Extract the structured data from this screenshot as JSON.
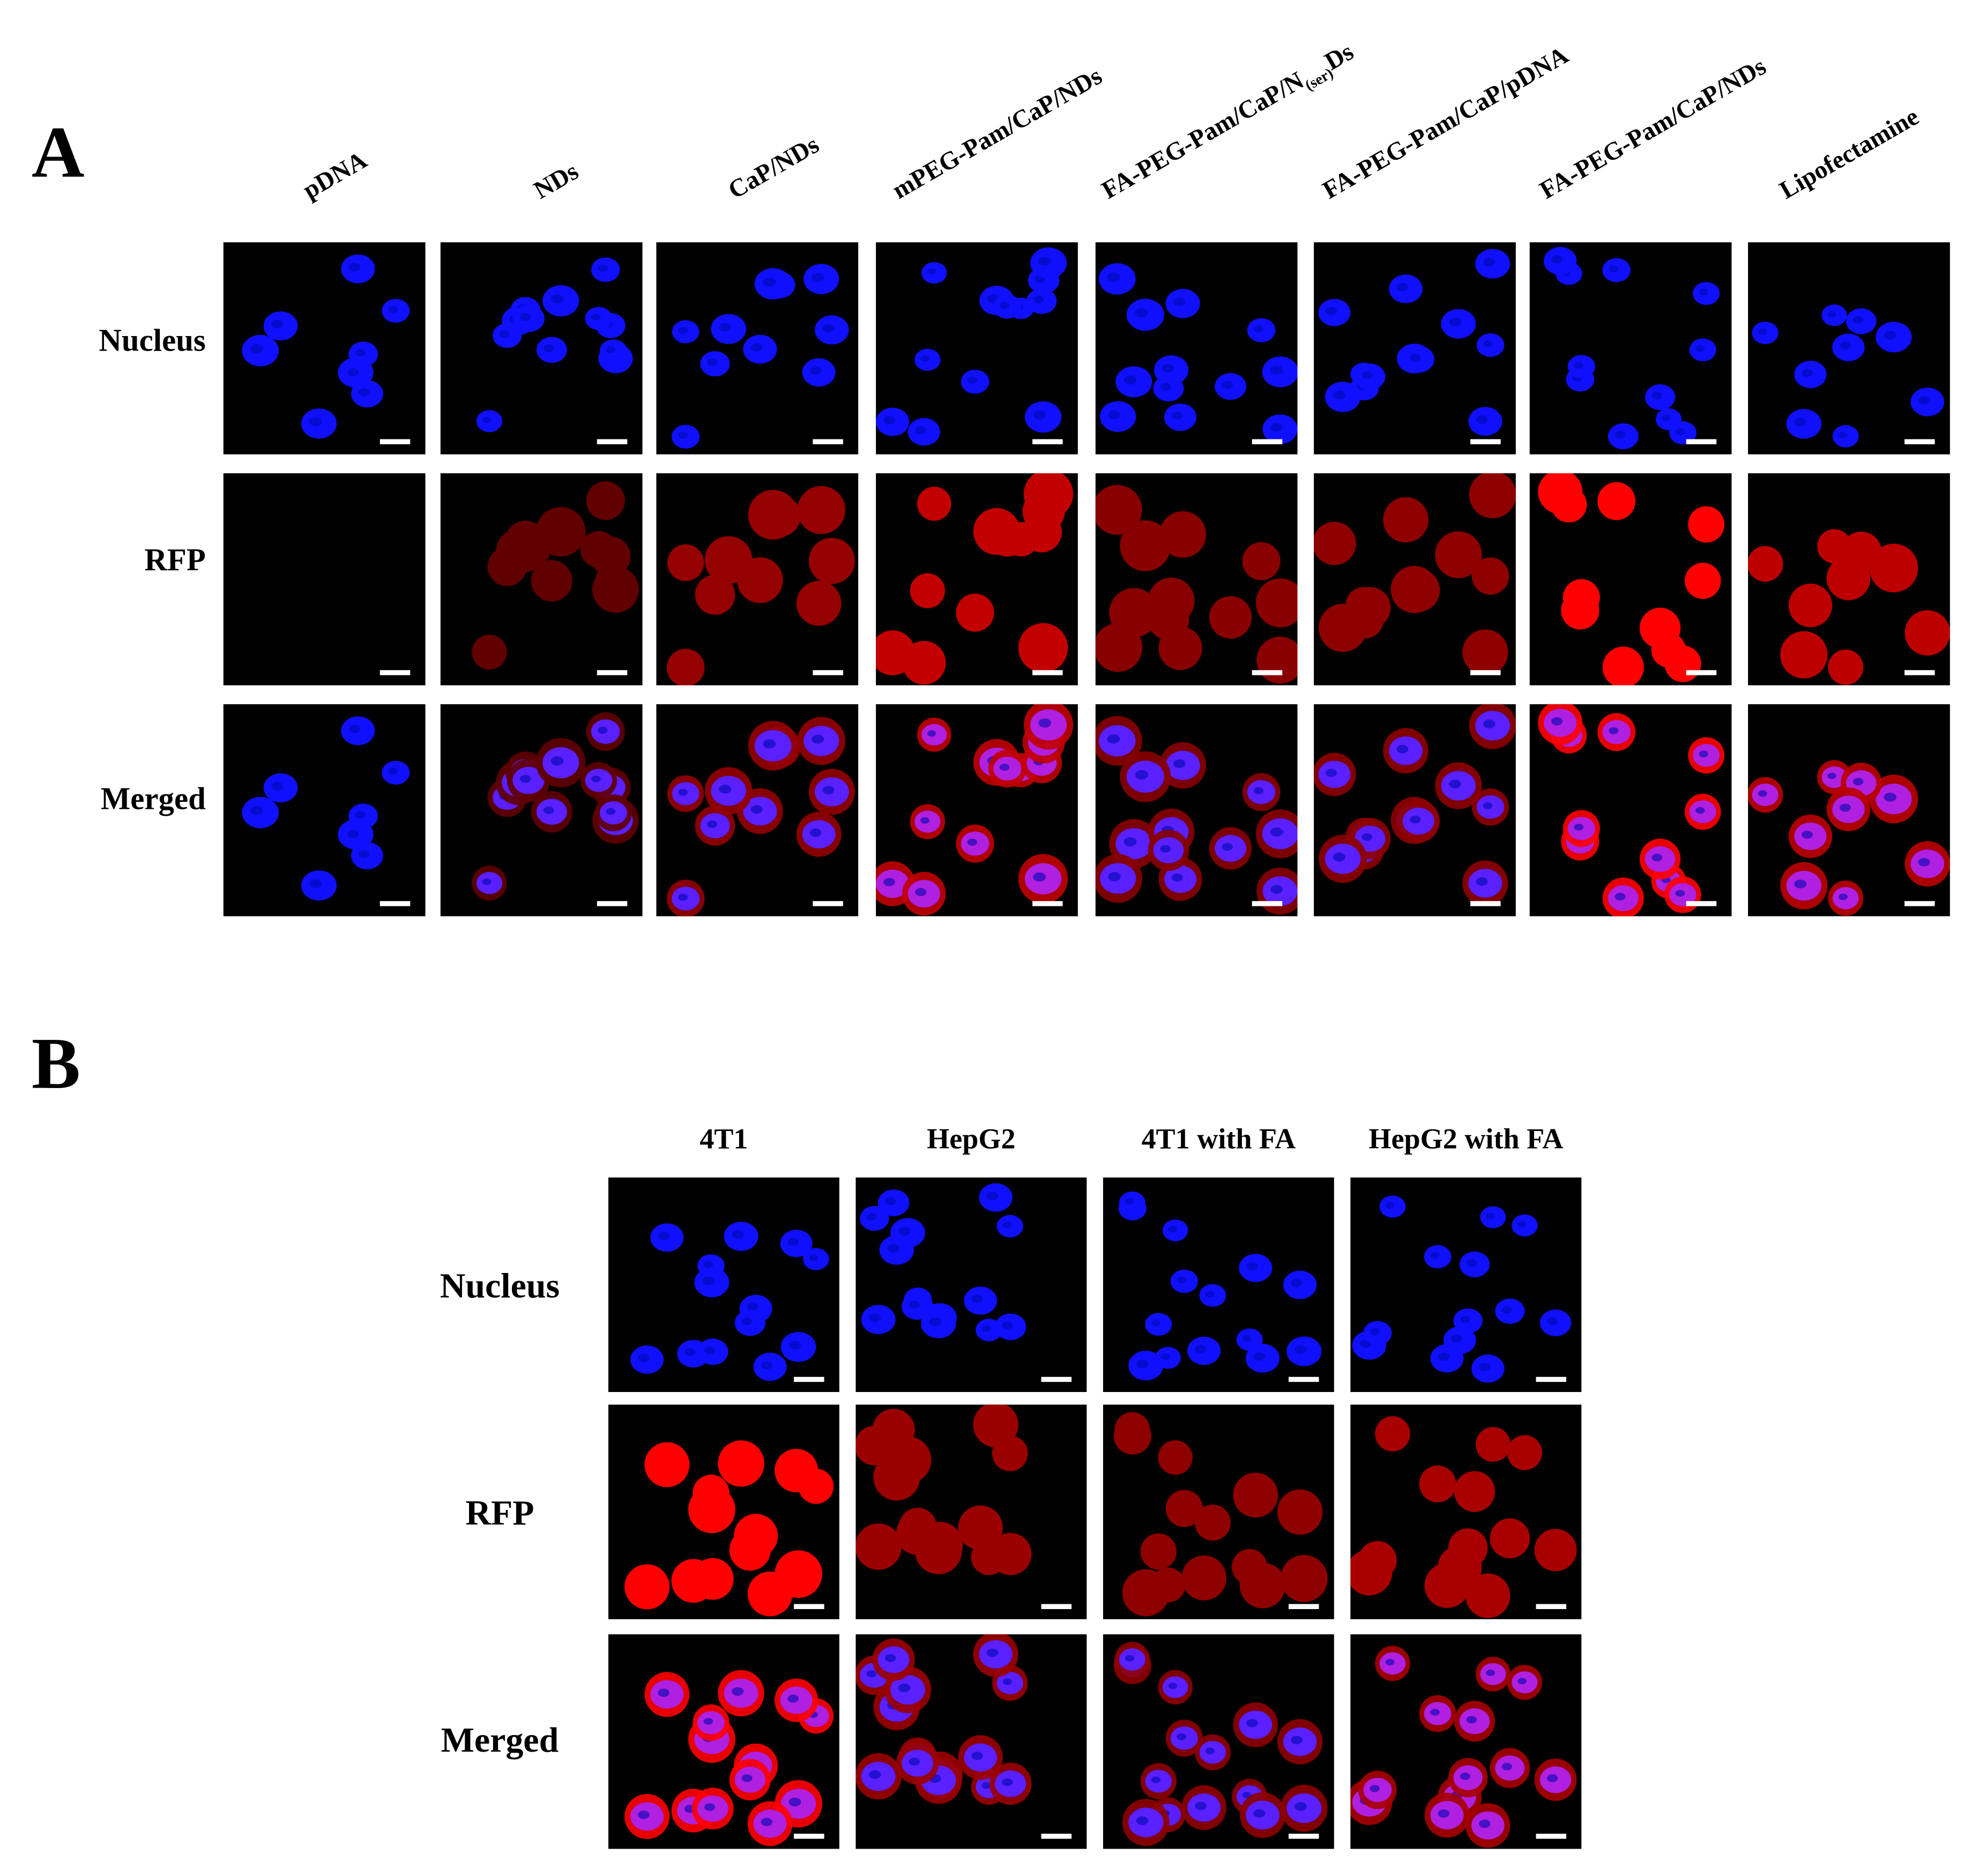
{
  "panel_a": {
    "label": "A",
    "columns": [
      "pDNA",
      "NDs",
      "CaP/NDs",
      "mPEG-Pam/CaP/NDs",
      {
        "main": "FA-PEG-Pam/CaP/N",
        "subscript": "(ser)",
        "suffix": "Ds"
      },
      "FA-PEG-Pam/CaP/pDNA",
      "FA-PEG-Pam/CaP/NDs",
      "Lipofectamine"
    ],
    "rows": [
      "Nucleus",
      "RFP",
      "Merged"
    ]
  },
  "panel_b": {
    "label": "B",
    "columns": [
      "4T1",
      "HepG2",
      "4T1 with FA",
      "HepG2 with FA"
    ],
    "rows": [
      "Nucleus",
      "RFP",
      "Merged"
    ]
  }
}
